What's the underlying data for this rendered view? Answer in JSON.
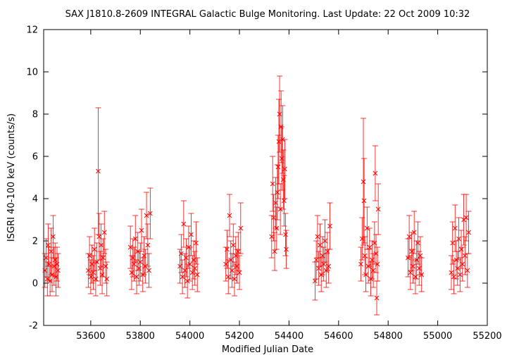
{
  "chart_data": {
    "type": "scatter",
    "title": "SAX J1810.8-2609   INTEGRAL Galactic Bulge Monitoring.  Last Update: 22 Oct 2009 10:32",
    "xlabel": "Modified Julian Date",
    "ylabel": "ISGRI 40-100 keV (counts/s)",
    "xlim": [
      53410,
      55200
    ],
    "ylim": [
      -2,
      12
    ],
    "xticks": [
      53600,
      53800,
      54000,
      54200,
      54400,
      54600,
      54800,
      55000,
      55200
    ],
    "yticks": [
      -2,
      0,
      2,
      4,
      6,
      8,
      10,
      12
    ],
    "grid": false,
    "marker": "x",
    "color": "#ff0000",
    "series": [
      {
        "points": [
          {
            "x": 53415,
            "y": 0.6,
            "err": 0.8
          },
          {
            "x": 53420,
            "y": 1.2,
            "err": 0.9
          },
          {
            "x": 53425,
            "y": 0.2,
            "err": 0.8
          },
          {
            "x": 53428,
            "y": 1.8,
            "err": 1.0
          },
          {
            "x": 53432,
            "y": 0.9,
            "err": 0.8
          },
          {
            "x": 53436,
            "y": 0.1,
            "err": 0.7
          },
          {
            "x": 53440,
            "y": 1.5,
            "err": 1.1
          },
          {
            "x": 53444,
            "y": 0.4,
            "err": 0.8
          },
          {
            "x": 53448,
            "y": 2.2,
            "err": 1.0
          },
          {
            "x": 53452,
            "y": 0.8,
            "err": 0.9
          },
          {
            "x": 53456,
            "y": 1.1,
            "err": 0.8
          },
          {
            "x": 53460,
            "y": 0.3,
            "err": 0.9
          },
          {
            "x": 53464,
            "y": 0.9,
            "err": 0.8
          },
          {
            "x": 53468,
            "y": 0.6,
            "err": 0.8
          },
          {
            "x": 53590,
            "y": 0.6,
            "err": 0.8
          },
          {
            "x": 53595,
            "y": 1.3,
            "err": 0.9
          },
          {
            "x": 53600,
            "y": 0.3,
            "err": 0.8
          },
          {
            "x": 53605,
            "y": 0.9,
            "err": 0.9
          },
          {
            "x": 53610,
            "y": 0.5,
            "err": 0.8
          },
          {
            "x": 53615,
            "y": 1.6,
            "err": 1.0
          },
          {
            "x": 53620,
            "y": 0.2,
            "err": 0.8
          },
          {
            "x": 53625,
            "y": 1.0,
            "err": 0.9
          },
          {
            "x": 53630,
            "y": 5.3,
            "err": 3.0
          },
          {
            "x": 53634,
            "y": 2.2,
            "err": 1.1
          },
          {
            "x": 53638,
            "y": 0.7,
            "err": 0.8
          },
          {
            "x": 53642,
            "y": 1.8,
            "err": 1.0
          },
          {
            "x": 53646,
            "y": 0.4,
            "err": 0.9
          },
          {
            "x": 53650,
            "y": 1.2,
            "err": 0.9
          },
          {
            "x": 53655,
            "y": 2.4,
            "err": 1.0
          },
          {
            "x": 53660,
            "y": 0.8,
            "err": 0.8
          },
          {
            "x": 53665,
            "y": 0.2,
            "err": 0.8
          },
          {
            "x": 53760,
            "y": 1.7,
            "err": 1.0
          },
          {
            "x": 53765,
            "y": 0.5,
            "err": 0.8
          },
          {
            "x": 53770,
            "y": 1.2,
            "err": 0.9
          },
          {
            "x": 53775,
            "y": 0.9,
            "err": 0.8
          },
          {
            "x": 53780,
            "y": 2.1,
            "err": 1.1
          },
          {
            "x": 53785,
            "y": 0.3,
            "err": 0.8
          },
          {
            "x": 53790,
            "y": 1.5,
            "err": 0.9
          },
          {
            "x": 53795,
            "y": 0.7,
            "err": 0.8
          },
          {
            "x": 53800,
            "y": 1.0,
            "err": 0.9
          },
          {
            "x": 53805,
            "y": 2.5,
            "err": 1.0
          },
          {
            "x": 53810,
            "y": 0.4,
            "err": 0.8
          },
          {
            "x": 53815,
            "y": 1.3,
            "err": 0.9
          },
          {
            "x": 53820,
            "y": 0.8,
            "err": 0.8
          },
          {
            "x": 53825,
            "y": 3.2,
            "err": 1.1
          },
          {
            "x": 53830,
            "y": 1.8,
            "err": 1.0
          },
          {
            "x": 53835,
            "y": 0.6,
            "err": 0.8
          },
          {
            "x": 53840,
            "y": 3.3,
            "err": 1.2
          },
          {
            "x": 53960,
            "y": 0.8,
            "err": 0.8
          },
          {
            "x": 53965,
            "y": 1.4,
            "err": 0.9
          },
          {
            "x": 53970,
            "y": 0.3,
            "err": 0.8
          },
          {
            "x": 53975,
            "y": 2.8,
            "err": 1.1
          },
          {
            "x": 53980,
            "y": 0.6,
            "err": 0.8
          },
          {
            "x": 53985,
            "y": 1.2,
            "err": 0.9
          },
          {
            "x": 53990,
            "y": 0.1,
            "err": 0.8
          },
          {
            "x": 53995,
            "y": 1.7,
            "err": 1.0
          },
          {
            "x": 54000,
            "y": 0.9,
            "err": 0.8
          },
          {
            "x": 54005,
            "y": 2.3,
            "err": 1.0
          },
          {
            "x": 54010,
            "y": 0.5,
            "err": 0.8
          },
          {
            "x": 54015,
            "y": 1.1,
            "err": 0.9
          },
          {
            "x": 54020,
            "y": 0.7,
            "err": 0.8
          },
          {
            "x": 54025,
            "y": 1.9,
            "err": 1.0
          },
          {
            "x": 54030,
            "y": 0.4,
            "err": 0.8
          },
          {
            "x": 54145,
            "y": 0.9,
            "err": 0.8
          },
          {
            "x": 54150,
            "y": 1.6,
            "err": 0.9
          },
          {
            "x": 54155,
            "y": 0.3,
            "err": 0.8
          },
          {
            "x": 54160,
            "y": 3.2,
            "err": 1.0
          },
          {
            "x": 54165,
            "y": 1.1,
            "err": 0.9
          },
          {
            "x": 54170,
            "y": 0.6,
            "err": 0.8
          },
          {
            "x": 54175,
            "y": 1.8,
            "err": 1.0
          },
          {
            "x": 54180,
            "y": 0.2,
            "err": 0.8
          },
          {
            "x": 54185,
            "y": 1.3,
            "err": 0.9
          },
          {
            "x": 54190,
            "y": 0.8,
            "err": 0.8
          },
          {
            "x": 54195,
            "y": 1.5,
            "err": 0.9
          },
          {
            "x": 54200,
            "y": 0.5,
            "err": 0.8
          },
          {
            "x": 54205,
            "y": 2.6,
            "err": 1.2
          },
          {
            "x": 54330,
            "y": 2.2,
            "err": 1.0
          },
          {
            "x": 54334,
            "y": 4.7,
            "err": 1.3
          },
          {
            "x": 54338,
            "y": 3.1,
            "err": 1.1
          },
          {
            "x": 54342,
            "y": 1.5,
            "err": 0.9
          },
          {
            "x": 54346,
            "y": 3.8,
            "err": 1.2
          },
          {
            "x": 54350,
            "y": 2.6,
            "err": 1.0
          },
          {
            "x": 54353,
            "y": 4.3,
            "err": 1.3
          },
          {
            "x": 54356,
            "y": 5.5,
            "err": 1.5
          },
          {
            "x": 54359,
            "y": 6.7,
            "err": 2.0
          },
          {
            "x": 54362,
            "y": 8.0,
            "err": 1.8
          },
          {
            "x": 54365,
            "y": 3.5,
            "err": 1.2
          },
          {
            "x": 54368,
            "y": 7.4,
            "err": 1.7
          },
          {
            "x": 54371,
            "y": 5.9,
            "err": 1.5
          },
          {
            "x": 54374,
            "y": 6.8,
            "err": 1.6
          },
          {
            "x": 54377,
            "y": 4.9,
            "err": 1.4
          },
          {
            "x": 54380,
            "y": 3.9,
            "err": 1.2
          },
          {
            "x": 54383,
            "y": 5.4,
            "err": 1.4
          },
          {
            "x": 54386,
            "y": 2.3,
            "err": 1.0
          },
          {
            "x": 54389,
            "y": 1.6,
            "err": 0.9
          },
          {
            "x": 54505,
            "y": 0.1,
            "err": 0.9
          },
          {
            "x": 54510,
            "y": 1.1,
            "err": 0.9
          },
          {
            "x": 54515,
            "y": 2.2,
            "err": 1.0
          },
          {
            "x": 54520,
            "y": 0.7,
            "err": 0.8
          },
          {
            "x": 54525,
            "y": 1.8,
            "err": 1.0
          },
          {
            "x": 54530,
            "y": 0.4,
            "err": 0.8
          },
          {
            "x": 54535,
            "y": 1.3,
            "err": 0.9
          },
          {
            "x": 54540,
            "y": 0.9,
            "err": 0.8
          },
          {
            "x": 54545,
            "y": 2.0,
            "err": 1.0
          },
          {
            "x": 54550,
            "y": 0.6,
            "err": 0.8
          },
          {
            "x": 54555,
            "y": 1.5,
            "err": 0.9
          },
          {
            "x": 54560,
            "y": 0.8,
            "err": 0.8
          },
          {
            "x": 54565,
            "y": 2.7,
            "err": 1.1
          },
          {
            "x": 54690,
            "y": 0.9,
            "err": 0.8
          },
          {
            "x": 54695,
            "y": 2.1,
            "err": 1.0
          },
          {
            "x": 54700,
            "y": 4.8,
            "err": 3.0
          },
          {
            "x": 54703,
            "y": 3.9,
            "err": 2.0
          },
          {
            "x": 54706,
            "y": 1.3,
            "err": 0.9
          },
          {
            "x": 54710,
            "y": 0.4,
            "err": 0.8
          },
          {
            "x": 54715,
            "y": 2.6,
            "err": 1.0
          },
          {
            "x": 54720,
            "y": 0.8,
            "err": 0.8
          },
          {
            "x": 54725,
            "y": 1.7,
            "err": 0.9
          },
          {
            "x": 54730,
            "y": 0.2,
            "err": 0.8
          },
          {
            "x": 54735,
            "y": 1.1,
            "err": 0.9
          },
          {
            "x": 54740,
            "y": 0.6,
            "err": 0.8
          },
          {
            "x": 54745,
            "y": 1.9,
            "err": 1.0
          },
          {
            "x": 54748,
            "y": 5.2,
            "err": 1.3
          },
          {
            "x": 54751,
            "y": 1.4,
            "err": 0.9
          },
          {
            "x": 54754,
            "y": -0.7,
            "err": 0.8
          },
          {
            "x": 54757,
            "y": 0.9,
            "err": 0.8
          },
          {
            "x": 54760,
            "y": 3.5,
            "err": 1.2
          },
          {
            "x": 54880,
            "y": 1.2,
            "err": 0.9
          },
          {
            "x": 54885,
            "y": 2.2,
            "err": 1.0
          },
          {
            "x": 54890,
            "y": 0.5,
            "err": 0.8
          },
          {
            "x": 54895,
            "y": 1.5,
            "err": 0.9
          },
          {
            "x": 54900,
            "y": 0.8,
            "err": 0.8
          },
          {
            "x": 54905,
            "y": 2.4,
            "err": 1.0
          },
          {
            "x": 54910,
            "y": 0.3,
            "err": 0.8
          },
          {
            "x": 54915,
            "y": 1.1,
            "err": 0.9
          },
          {
            "x": 54920,
            "y": 1.9,
            "err": 1.0
          },
          {
            "x": 54925,
            "y": 0.7,
            "err": 0.8
          },
          {
            "x": 54930,
            "y": 1.3,
            "err": 0.9
          },
          {
            "x": 54935,
            "y": 0.4,
            "err": 0.8
          },
          {
            "x": 55055,
            "y": 0.5,
            "err": 0.8
          },
          {
            "x": 55060,
            "y": 1.9,
            "err": 1.0
          },
          {
            "x": 55065,
            "y": 0.3,
            "err": 0.8
          },
          {
            "x": 55070,
            "y": 2.6,
            "err": 1.1
          },
          {
            "x": 55075,
            "y": 1.1,
            "err": 0.9
          },
          {
            "x": 55080,
            "y": 0.7,
            "err": 0.8
          },
          {
            "x": 55085,
            "y": 2.1,
            "err": 1.0
          },
          {
            "x": 55090,
            "y": 0.4,
            "err": 0.8
          },
          {
            "x": 55095,
            "y": 1.6,
            "err": 0.9
          },
          {
            "x": 55100,
            "y": 0.9,
            "err": 0.8
          },
          {
            "x": 55105,
            "y": 3.0,
            "err": 1.2
          },
          {
            "x": 55110,
            "y": 1.3,
            "err": 0.9
          },
          {
            "x": 55115,
            "y": 3.1,
            "err": 1.1
          },
          {
            "x": 55120,
            "y": 0.6,
            "err": 0.8
          },
          {
            "x": 55125,
            "y": 2.4,
            "err": 1.0
          }
        ]
      }
    ]
  }
}
